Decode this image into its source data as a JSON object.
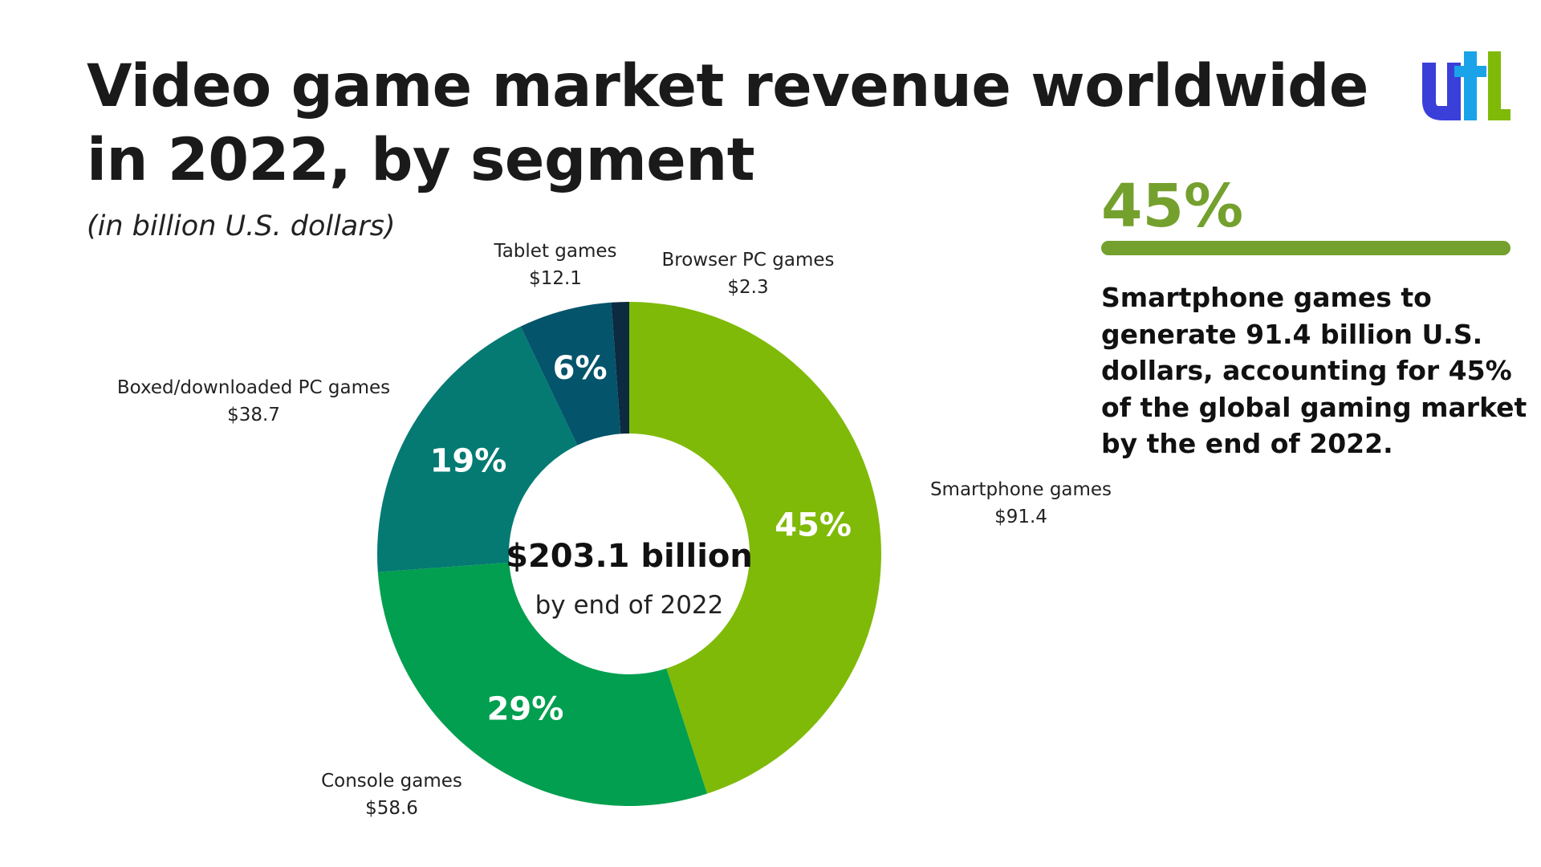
{
  "title": "Video game market revenue worldwide in 2022, by segment",
  "subtitle": "(in billion U.S. dollars)",
  "highlight": {
    "value": "45%",
    "text": "Smartphone games to generate 91.4 billion U.S. dollars, accounting for 45% of the global gaming market by the end of 2022."
  },
  "chart_data": {
    "type": "pie",
    "donut": true,
    "center_value": "$203.1 billion",
    "center_label": "by end of 2022",
    "slices": [
      {
        "name": "Smartphone games",
        "value_label": "$91.4",
        "value": 91.4,
        "pct_label": "45%",
        "color": "#7fba08"
      },
      {
        "name": "Console games",
        "value_label": "$58.6",
        "value": 58.6,
        "pct_label": "29%",
        "color": "#019f4f"
      },
      {
        "name": "Boxed/downloaded PC games",
        "value_label": "$38.7",
        "value": 38.7,
        "pct_label": "19%",
        "color": "#047a73"
      },
      {
        "name": "Tablet games",
        "value_label": "$12.1",
        "value": 12.1,
        "pct_label": "6%",
        "color": "#04546b"
      },
      {
        "name": "Browser PC games",
        "value_label": "$2.3",
        "value": 2.3,
        "pct_label": "",
        "color": "#0c2a40"
      }
    ]
  },
  "colors": {
    "accent": "#74a02e",
    "logo_blue": "#3a3fd9",
    "logo_cyan": "#1aa3e8",
    "logo_green": "#7fba08"
  }
}
